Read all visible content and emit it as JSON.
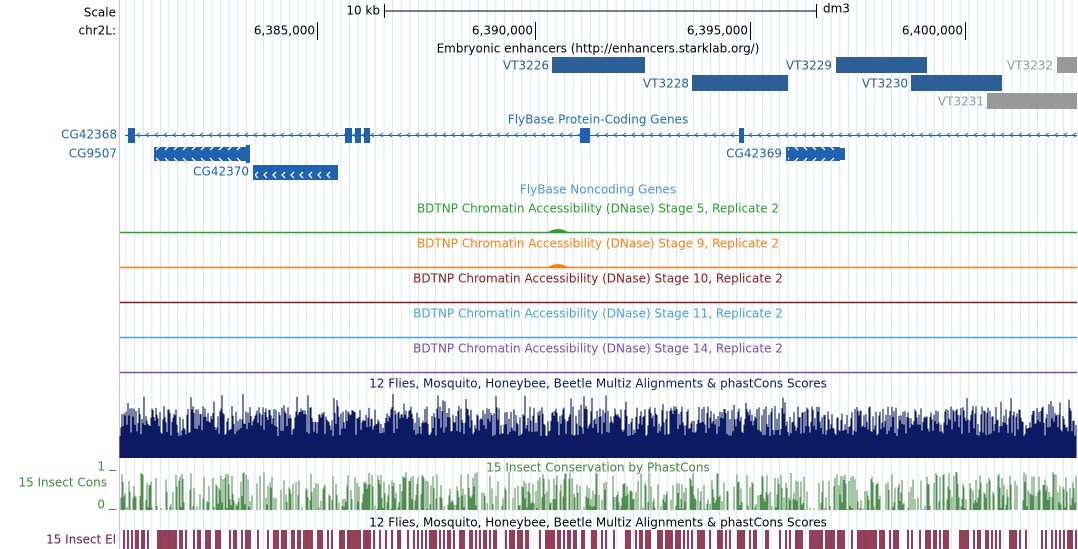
{
  "ruler": {
    "scale_label": "Scale",
    "span": "10 kb",
    "assembly": "dm3",
    "chrom": "chr2L:",
    "positions": [
      "6,385,000",
      "6,390,000",
      "6,395,000",
      "6,400,000"
    ]
  },
  "enhancers": {
    "title": "Embryonic enhancers (http://enhancers.starklab.org/)",
    "items": [
      "VT3226",
      "VT3228",
      "VT3229",
      "VT3230",
      "VT3232",
      "VT3231"
    ]
  },
  "protein_genes": {
    "title": "FlyBase Protein-Coding Genes",
    "genes": [
      "CG42368",
      "CG9507",
      "CG42370",
      "CG42369"
    ]
  },
  "noncoding_genes": {
    "title": "FlyBase Noncoding Genes"
  },
  "dnase": [
    "BDTNP Chromatin Accessibility (DNase) Stage 5, Replicate 2",
    "BDTNP Chromatin Accessibility (DNase) Stage 9, Replicate 2",
    "BDTNP Chromatin Accessibility (DNase) Stage 10, Replicate 2",
    "BDTNP Chromatin Accessibility (DNase) Stage 11, Replicate 2",
    "BDTNP Chromatin Accessibility (DNase) Stage 14, Replicate 2"
  ],
  "multiz": {
    "title": "12 Flies, Mosquito, Honeybee, Beetle Multiz Alignments & phastCons Scores"
  },
  "phastcons": {
    "label": "15 Insect Cons",
    "title": "15 Insect Conservation by PhastCons",
    "max_label": "1",
    "min_label": "0"
  },
  "elements": {
    "label": "15 Insect El",
    "title": "12 Flies, Mosquito, Honeybee, Beetle Multiz Alignments & phastCons Scores"
  }
}
